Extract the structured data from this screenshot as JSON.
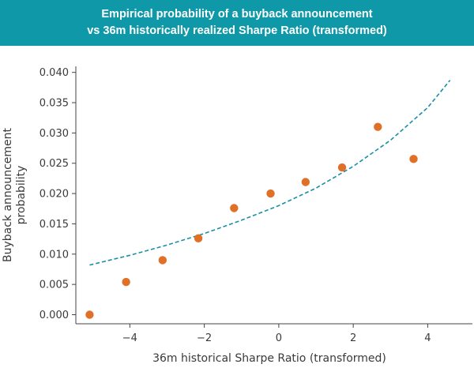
{
  "header": {
    "title_line1": "Empirical probability of a buyback announcement",
    "title_line2": "vs 36m historically realized Sharpe Ratio (transformed)"
  },
  "colors": {
    "banner_bg": "#0f99a8",
    "points": "#e07028",
    "fit_line": "#1a8fa6",
    "axes": "#444444"
  },
  "chart_data": {
    "type": "scatter",
    "title": "Empirical probability of a buyback announcement vs 36m historically realized Sharpe Ratio (transformed)",
    "xlabel": "36m historical Sharpe Ratio (transformed)",
    "ylabel": "Buyback announcement probability",
    "ylabel_lines": [
      "Buyback announcement",
      "probability"
    ],
    "xlim": [
      -5.45,
      5.2
    ],
    "ylim": [
      -0.0015,
      0.041
    ],
    "xticks": [
      -4,
      -2,
      0,
      2,
      4
    ],
    "xtick_labels": [
      "−4",
      "−2",
      "0",
      "2",
      "4"
    ],
    "yticks": [
      0.0,
      0.005,
      0.01,
      0.015,
      0.02,
      0.025,
      0.03,
      0.035,
      0.04
    ],
    "ytick_labels": [
      "0.000",
      "0.005",
      "0.010",
      "0.015",
      "0.020",
      "0.025",
      "0.030",
      "0.035",
      "0.040"
    ],
    "grid": false,
    "series": [
      {
        "type": "scatter",
        "x": [
          -5.08,
          -4.1,
          -3.12,
          -2.16,
          -1.2,
          -0.22,
          0.72,
          1.7,
          2.66,
          3.62
        ],
        "y": [
          0.0,
          0.0054,
          0.009,
          0.0126,
          0.0176,
          0.02,
          0.0219,
          0.0243,
          0.031,
          0.0257
        ]
      },
      {
        "type": "line",
        "style": "dashed",
        "x": [
          -5.08,
          -4.0,
          -3.0,
          -2.0,
          -1.0,
          0.0,
          1.0,
          2.0,
          3.0,
          4.0,
          4.6
        ],
        "y": [
          0.0082,
          0.0098,
          0.0115,
          0.0134,
          0.0156,
          0.018,
          0.0209,
          0.0245,
          0.0288,
          0.0342,
          0.0387
        ]
      }
    ]
  }
}
